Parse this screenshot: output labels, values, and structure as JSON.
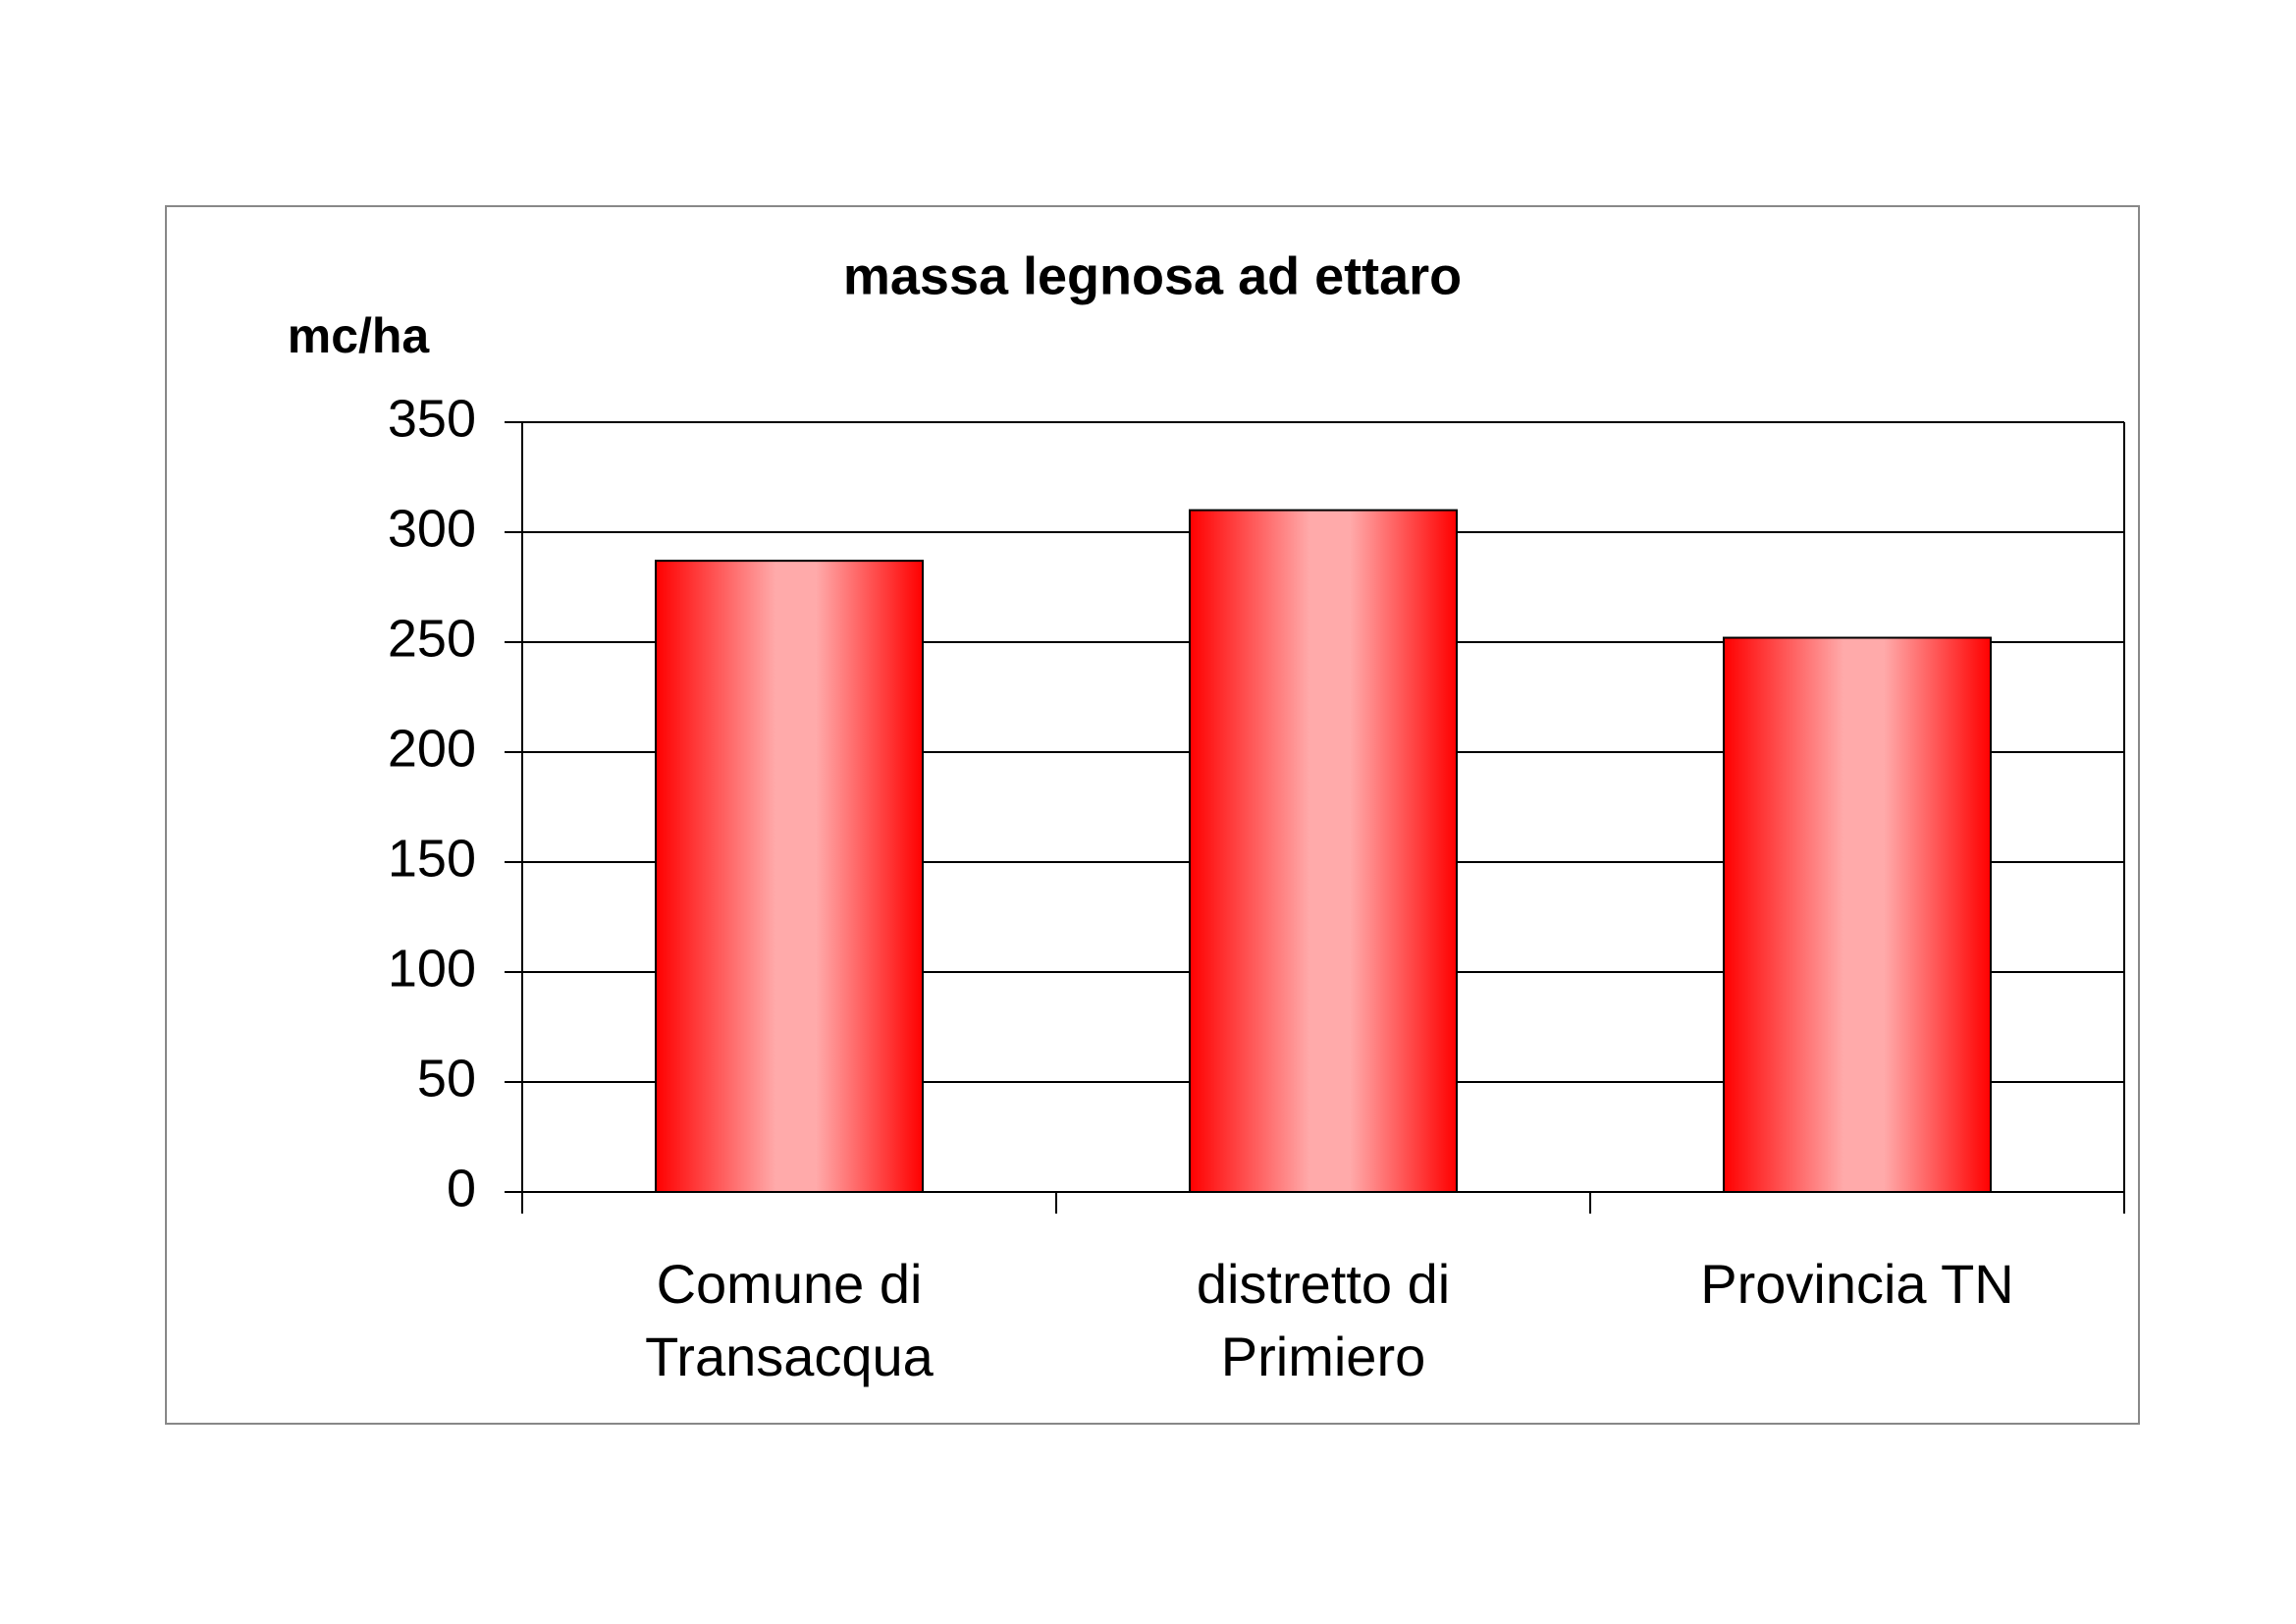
{
  "chart_data": {
    "type": "bar",
    "title": "massa legnosa ad ettaro",
    "y_label": "mc/ha",
    "categories": [
      "Comune di Transacqua",
      "distretto di Primiero",
      "Provincia TN"
    ],
    "values": [
      287,
      310,
      252
    ],
    "color": "#ff0000",
    "ylim": [
      0,
      350
    ],
    "yticks": [
      0,
      50,
      100,
      150,
      200,
      250,
      300,
      350
    ],
    "grid": true
  }
}
